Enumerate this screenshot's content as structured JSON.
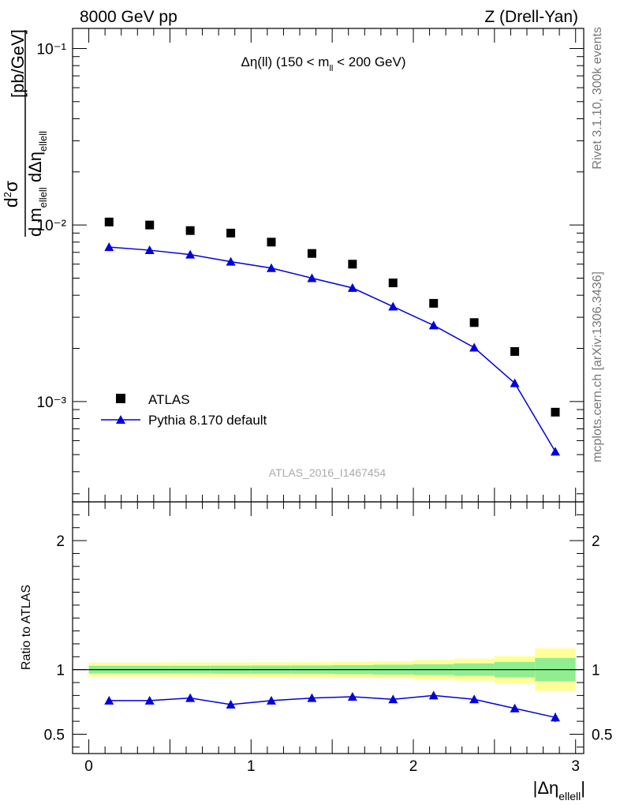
{
  "header": {
    "left": "8000 GeV pp",
    "right": "Z (Drell-Yan)"
  },
  "side_labels": {
    "rivet": "Rivet 3.1.10,  300k events",
    "mcplots": "mcplots.cern.ch [arXiv:1306.3436]"
  },
  "chart_data": [
    {
      "type": "scatter",
      "panel": "main",
      "title": "Δη(ll) (150 < m_ll < 200 GeV)",
      "ylabel": "d²σ / d m_ellell dΔη_ellell [pb/GeV]",
      "yscale": "log",
      "ylim": [
        0.00027,
        0.13
      ],
      "xlim": [
        -0.1,
        3.05
      ],
      "y_tick_labels": [
        "10⁻³",
        "10⁻²",
        "10⁻¹"
      ],
      "watermark": "ATLAS_2016_I1467454",
      "legend_position": "lower-left",
      "x": [
        0.125,
        0.375,
        0.625,
        0.875,
        1.125,
        1.375,
        1.625,
        1.875,
        2.125,
        2.375,
        2.625,
        2.875
      ],
      "series": [
        {
          "name": "ATLAS",
          "style": "markers",
          "marker": "square",
          "color": "#000000",
          "values": [
            0.0104,
            0.01,
            0.0093,
            0.009,
            0.008,
            0.0069,
            0.006,
            0.0047,
            0.0036,
            0.0028,
            0.00192,
            0.00087
          ]
        },
        {
          "name": "Pythia 8.170 default",
          "style": "line+markers",
          "marker": "triangle",
          "color": "#0000dd",
          "values": [
            0.0075,
            0.0072,
            0.0068,
            0.0062,
            0.0057,
            0.005,
            0.0044,
            0.00345,
            0.0027,
            0.00202,
            0.00127,
            0.00052
          ]
        }
      ]
    },
    {
      "type": "scatter",
      "panel": "ratio",
      "ylabel": "Ratio to ATLAS",
      "xlabel": "|Δη_ellell|",
      "ylim": [
        0.35,
        2.3
      ],
      "xlim": [
        -0.1,
        3.05
      ],
      "x_tick_labels": [
        "0",
        "1",
        "2",
        "3"
      ],
      "y_tick_labels": [
        "0.5",
        "1",
        "2"
      ],
      "bin_edges": [
        0,
        0.25,
        0.5,
        0.75,
        1.0,
        1.25,
        1.5,
        1.75,
        2.0,
        2.25,
        2.5,
        2.75,
        3.0
      ],
      "band_outer": [
        0.055,
        0.055,
        0.056,
        0.056,
        0.057,
        0.058,
        0.062,
        0.066,
        0.075,
        0.085,
        0.105,
        0.165
      ],
      "band_inner": [
        0.03,
        0.03,
        0.03,
        0.031,
        0.032,
        0.033,
        0.035,
        0.038,
        0.042,
        0.048,
        0.06,
        0.09
      ],
      "band_outer_color": "#ffff99",
      "band_inner_color": "#90ee90",
      "x": [
        0.125,
        0.375,
        0.625,
        0.875,
        1.125,
        1.375,
        1.625,
        1.875,
        2.125,
        2.375,
        2.625,
        2.875
      ],
      "series": [
        {
          "name": "Pythia 8.170 default",
          "color": "#0000dd",
          "values": [
            0.76,
            0.76,
            0.78,
            0.73,
            0.76,
            0.78,
            0.79,
            0.77,
            0.8,
            0.77,
            0.7,
            0.63
          ],
          "errors": [
            0.008,
            0.008,
            0.008,
            0.009,
            0.009,
            0.01,
            0.01,
            0.012,
            0.013,
            0.018,
            0.025,
            0.035
          ]
        }
      ]
    }
  ]
}
